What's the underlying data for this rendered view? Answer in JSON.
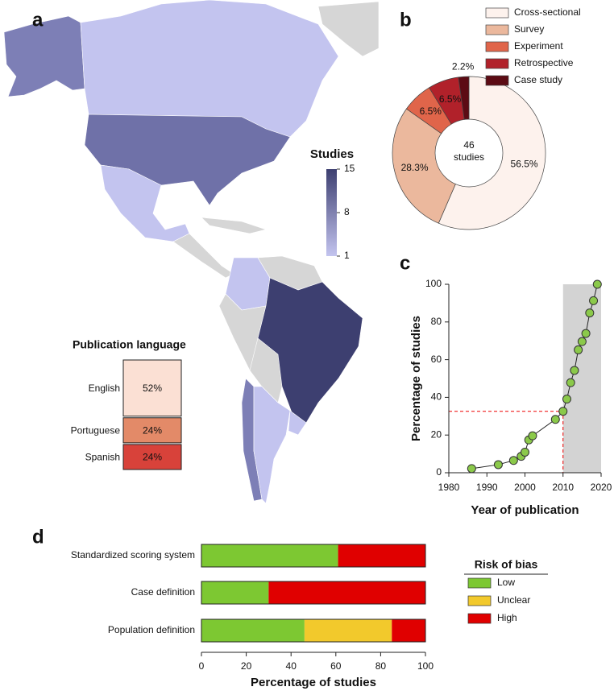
{
  "panels": [
    "a",
    "b",
    "c",
    "d"
  ],
  "chart_data": [
    {
      "type": "colorbar",
      "title": "Studies",
      "clim": [
        1,
        15
      ],
      "ticks": [
        1,
        8,
        15
      ],
      "colors": [
        "#c3c4ef",
        "#3d3f70"
      ]
    },
    {
      "type": "column",
      "title": "Publication language",
      "categories": [
        "English",
        "Portuguese",
        "Spanish"
      ],
      "values": [
        52,
        24,
        24
      ],
      "value_labels": [
        "52%",
        "24%",
        "24%"
      ],
      "colors": [
        "#fbe0d4",
        "#e38a68",
        "#d8423a"
      ]
    },
    {
      "type": "donut",
      "categories": [
        "Cross-sectional",
        "Survey",
        "Experiment",
        "Retrospective",
        "Case study"
      ],
      "values": [
        56.5,
        28.3,
        6.5,
        6.5,
        2.2
      ],
      "value_labels": [
        "56.5%",
        "28.3%",
        "6.5%",
        "6.5%",
        "2.2%"
      ],
      "colors": [
        "#fdf2ed",
        "#ebb89d",
        "#e0654a",
        "#b1212a",
        "#5c0b14"
      ],
      "total": 46,
      "total_label": "studies"
    },
    {
      "type": "line",
      "xlabel": "Year of publication",
      "ylabel": "Percentage of studies",
      "x": [
        1986,
        1993,
        1997,
        1999,
        2000,
        2001,
        2002,
        2008,
        2010,
        2011,
        2012,
        2013,
        2014,
        2015,
        2016,
        2017,
        2018,
        2019
      ],
      "values": [
        2.2,
        4.3,
        6.5,
        8.7,
        10.9,
        17.4,
        19.6,
        28.3,
        32.6,
        39.1,
        47.8,
        54.3,
        65.2,
        69.6,
        73.9,
        84.8,
        91.3,
        100
      ],
      "color": "#8bc94a",
      "xlim": [
        1980,
        2020
      ],
      "ylim": [
        0,
        100
      ],
      "xticks": [
        1980,
        1990,
        2000,
        2010,
        2020
      ],
      "yticks": [
        0,
        20,
        40,
        60,
        80,
        100
      ],
      "shade_from": 2010,
      "reference": {
        "x": 2010,
        "y": 32.6
      }
    },
    {
      "type": "hbar-stacked",
      "xlabel": "Percentage of studies",
      "legend_title": "Risk of bias",
      "categories": [
        "Standardized scoring system",
        "Case definition",
        "Population definition"
      ],
      "series": [
        {
          "name": "Low",
          "color": "#7dc832",
          "values": [
            61,
            30,
            46
          ]
        },
        {
          "name": "Unclear",
          "color": "#f2c92c",
          "values": [
            0,
            0,
            39
          ]
        },
        {
          "name": "High",
          "color": "#e00000",
          "values": [
            39,
            70,
            15
          ]
        }
      ],
      "xlim": [
        0,
        100
      ],
      "xticks": [
        0,
        20,
        40,
        60,
        80,
        100
      ]
    }
  ]
}
